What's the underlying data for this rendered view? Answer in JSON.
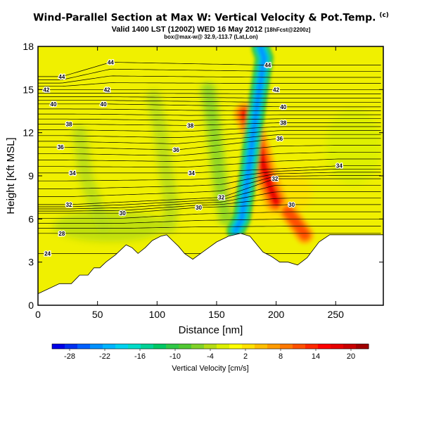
{
  "title": {
    "main": "Wind-Parallel Section at Max W: Vertical Velocity & Pot.Temp.",
    "copyright": "(c)",
    "valid_line": "Valid 1400 LST (1200Z) WED 16 May 2012",
    "run_tag": "[18hFcst@2200z]",
    "location_line": "box@max-w@ 32.9,-113.7 (Lat,Lon)"
  },
  "chart_data": {
    "type": "heatmap",
    "xlabel": "Distance [nm]",
    "ylabel": "Height [Kft MSL]",
    "xlim": [
      0,
      290
    ],
    "ylim": [
      0,
      18
    ],
    "x_ticks": [
      0,
      50,
      100,
      150,
      200,
      250
    ],
    "y_ticks": [
      0,
      3,
      6,
      9,
      12,
      15,
      18
    ],
    "colorbar": {
      "label": "Vertical Velocity [cm/s]",
      "ticks": [
        -28,
        -22,
        -16,
        -10,
        -4,
        2,
        8,
        14,
        20
      ],
      "range": [
        -31,
        23
      ],
      "colors": [
        "#0000e6",
        "#0030f0",
        "#0060ff",
        "#0090ff",
        "#00b4ff",
        "#00d2f0",
        "#00dcc8",
        "#00d296",
        "#00c864",
        "#30c846",
        "#50c832",
        "#80d228",
        "#b4dc14",
        "#dcf000",
        "#ffff00",
        "#ffe100",
        "#ffbe00",
        "#ff9b00",
        "#ff7800",
        "#ff5000",
        "#ff2800",
        "#ff0000",
        "#e60000",
        "#c80000",
        "#a00000"
      ]
    },
    "theta_contours": {
      "units": "K (labels)",
      "labels": [
        {
          "value": "44",
          "x": 20,
          "y": 15.9
        },
        {
          "value": "44",
          "x": 61,
          "y": 16.9
        },
        {
          "value": "44",
          "x": 193,
          "y": 16.7
        },
        {
          "value": "42",
          "x": 7,
          "y": 15.0
        },
        {
          "value": "42",
          "x": 58,
          "y": 15.0
        },
        {
          "value": "42",
          "x": 200,
          "y": 15.0
        },
        {
          "value": "40",
          "x": 13,
          "y": 14.0
        },
        {
          "value": "40",
          "x": 55,
          "y": 14.0
        },
        {
          "value": "40",
          "x": 206,
          "y": 13.8
        },
        {
          "value": "38",
          "x": 26,
          "y": 12.6
        },
        {
          "value": "38",
          "x": 128,
          "y": 12.5
        },
        {
          "value": "38",
          "x": 206,
          "y": 12.7
        },
        {
          "value": "36",
          "x": 19,
          "y": 11.0
        },
        {
          "value": "36",
          "x": 116,
          "y": 10.8
        },
        {
          "value": "36",
          "x": 203,
          "y": 11.6
        },
        {
          "value": "34",
          "x": 29,
          "y": 9.2
        },
        {
          "value": "34",
          "x": 129,
          "y": 9.2
        },
        {
          "value": "34",
          "x": 253,
          "y": 9.7
        },
        {
          "value": "32",
          "x": 26,
          "y": 7.0
        },
        {
          "value": "32",
          "x": 154,
          "y": 7.5
        },
        {
          "value": "32",
          "x": 199,
          "y": 8.8
        },
        {
          "value": "30",
          "x": 71,
          "y": 6.4
        },
        {
          "value": "30",
          "x": 135,
          "y": 6.8
        },
        {
          "value": "30",
          "x": 213,
          "y": 7.0
        },
        {
          "value": "28",
          "x": 20,
          "y": 5.0
        },
        {
          "value": "24",
          "x": 8,
          "y": 3.6
        }
      ]
    },
    "terrain": [
      [
        0,
        0.8
      ],
      [
        18,
        1.5
      ],
      [
        28,
        1.5
      ],
      [
        35,
        2.1
      ],
      [
        42,
        2.1
      ],
      [
        47,
        2.6
      ],
      [
        52,
        2.6
      ],
      [
        57,
        3.0
      ],
      [
        65,
        3.5
      ],
      [
        74,
        4.2
      ],
      [
        79,
        4.0
      ],
      [
        84,
        3.6
      ],
      [
        90,
        4.0
      ],
      [
        96,
        4.5
      ],
      [
        103,
        4.8
      ],
      [
        108,
        4.9
      ],
      [
        113,
        4.5
      ],
      [
        118,
        4.1
      ],
      [
        123,
        3.6
      ],
      [
        130,
        3.2
      ],
      [
        140,
        3.8
      ],
      [
        150,
        4.4
      ],
      [
        160,
        4.8
      ],
      [
        170,
        5.0
      ],
      [
        178,
        4.8
      ],
      [
        184,
        4.2
      ],
      [
        189,
        3.7
      ],
      [
        196,
        3.4
      ],
      [
        203,
        3.0
      ],
      [
        210,
        3.0
      ],
      [
        218,
        2.8
      ],
      [
        226,
        3.3
      ],
      [
        236,
        4.4
      ],
      [
        245,
        4.9
      ],
      [
        290,
        4.9
      ]
    ],
    "w_features": [
      {
        "kind": "updraft",
        "path": [
          [
            174,
            13.3
          ],
          [
            180,
            12.2
          ],
          [
            186,
            10.8
          ],
          [
            190,
            9.5
          ],
          [
            195,
            8.2
          ],
          [
            200,
            7.2
          ]
        ],
        "max": 23
      },
      {
        "kind": "downdraft",
        "path": [
          [
            187,
            17.9
          ],
          [
            190,
            17.2
          ],
          [
            185,
            14.5
          ],
          [
            180,
            11.5
          ],
          [
            176,
            8.7
          ],
          [
            171,
            6.0
          ],
          [
            166,
            5.2
          ]
        ],
        "min": -25
      },
      {
        "kind": "updraft",
        "path": [
          [
            210,
            6.5
          ],
          [
            218,
            5.6
          ],
          [
            224,
            4.9
          ]
        ],
        "max": 14
      },
      {
        "kind": "gravity-wave-band",
        "path": [
          [
            97,
            14.5
          ],
          [
            103,
            12
          ],
          [
            108,
            9
          ],
          [
            112,
            7
          ],
          [
            110,
            5.5
          ]
        ],
        "max": 4
      },
      {
        "kind": "gravity-wave-band",
        "path": [
          [
            35,
            12
          ],
          [
            40,
            9
          ],
          [
            48,
            7
          ],
          [
            55,
            5.5
          ]
        ],
        "max": 2
      },
      {
        "kind": "gravity-wave-band",
        "path": [
          [
            143,
            15
          ],
          [
            148,
            12
          ],
          [
            152,
            9
          ],
          [
            158,
            6
          ]
        ],
        "max": -6
      }
    ]
  },
  "colors": {
    "background": "#ffffff",
    "base_field": "#f0f000",
    "contour": "#000000"
  }
}
